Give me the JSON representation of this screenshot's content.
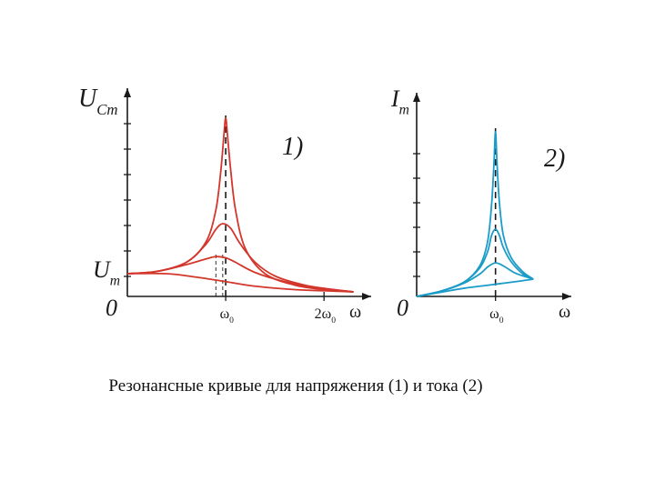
{
  "caption": "Резонансные кривые для напряжения (1) и тока (2)",
  "colors": {
    "voltage": "#d3372b",
    "current": "#1b9cc8",
    "axis": "#1a1a1a"
  },
  "chart_data": [
    {
      "type": "line",
      "panel_label": "1)",
      "ylabel": {
        "main": "U",
        "sub": "Cm"
      },
      "y_marker": {
        "main": "U",
        "sub": "m"
      },
      "origin_label": "0",
      "xlabel": "ω",
      "x_ticks": [
        {
          "value": 1,
          "label": "ω0",
          "main": "ω",
          "sub": "0"
        },
        {
          "value": 2,
          "label": "2ω0",
          "main": "2ω",
          "sub": "0"
        }
      ],
      "xlim": [
        0,
        2.35
      ],
      "ylim": [
        0,
        8.6
      ],
      "resonance_line_x": 1,
      "dashed_peaks_x": [
        0.9,
        0.97
      ],
      "series": [
        {
          "values": [
            [
              0,
              1
            ],
            [
              0.3,
              1.1
            ],
            [
              0.6,
              1.5
            ],
            [
              0.8,
              2.4
            ],
            [
              0.9,
              3.8
            ],
            [
              0.95,
              5.5
            ],
            [
              0.98,
              7.0
            ],
            [
              1.0,
              7.85
            ],
            [
              1.02,
              7.0
            ],
            [
              1.05,
              5.6
            ],
            [
              1.1,
              3.8
            ],
            [
              1.2,
              2.1
            ],
            [
              1.4,
              1.0
            ],
            [
              1.7,
              0.5
            ],
            [
              2.0,
              0.3
            ],
            [
              2.3,
              0.2
            ]
          ]
        },
        {
          "values": [
            [
              0,
              1
            ],
            [
              0.3,
              1.1
            ],
            [
              0.6,
              1.5
            ],
            [
              0.8,
              2.3
            ],
            [
              0.9,
              2.95
            ],
            [
              0.97,
              3.2
            ],
            [
              1.05,
              3.0
            ],
            [
              1.15,
              2.3
            ],
            [
              1.3,
              1.5
            ],
            [
              1.5,
              0.9
            ],
            [
              1.8,
              0.5
            ],
            [
              2.1,
              0.3
            ],
            [
              2.3,
              0.2
            ]
          ]
        },
        {
          "values": [
            [
              0,
              1
            ],
            [
              0.3,
              1.1
            ],
            [
              0.6,
              1.4
            ],
            [
              0.8,
              1.65
            ],
            [
              0.9,
              1.75
            ],
            [
              1.0,
              1.7
            ],
            [
              1.1,
              1.5
            ],
            [
              1.3,
              1.05
            ],
            [
              1.6,
              0.65
            ],
            [
              1.9,
              0.4
            ],
            [
              2.3,
              0.2
            ]
          ]
        },
        {
          "values": [
            [
              0,
              1
            ],
            [
              0.4,
              1
            ],
            [
              0.7,
              0.85
            ],
            [
              1.0,
              0.65
            ],
            [
              1.3,
              0.45
            ],
            [
              1.7,
              0.3
            ],
            [
              2.0,
              0.25
            ],
            [
              2.3,
              0.2
            ]
          ]
        }
      ]
    },
    {
      "type": "line",
      "panel_label": "2)",
      "ylabel": {
        "main": "I",
        "sub": "m"
      },
      "origin_label": "0",
      "xlabel": "ω",
      "x_ticks": [
        {
          "value": 1,
          "label": "ω0",
          "main": "ω",
          "sub": "0"
        }
      ],
      "xlim": [
        0,
        1.8
      ],
      "ylim": [
        0,
        9.4
      ],
      "resonance_line_x": 1,
      "series": [
        {
          "values": [
            [
              0,
              0
            ],
            [
              0.3,
              0.25
            ],
            [
              0.6,
              0.7
            ],
            [
              0.8,
              1.5
            ],
            [
              0.9,
              2.7
            ],
            [
              0.95,
              4.5
            ],
            [
              0.98,
              6.5
            ],
            [
              1.0,
              8.1
            ],
            [
              1.02,
              6.5
            ],
            [
              1.05,
              4.6
            ],
            [
              1.1,
              3.0
            ],
            [
              1.2,
              1.9
            ],
            [
              1.35,
              1.2
            ],
            [
              1.48,
              0.85
            ]
          ]
        },
        {
          "values": [
            [
              0,
              0
            ],
            [
              0.3,
              0.25
            ],
            [
              0.6,
              0.7
            ],
            [
              0.8,
              1.4
            ],
            [
              0.9,
              2.2
            ],
            [
              0.95,
              3.0
            ],
            [
              1.0,
              3.3
            ],
            [
              1.05,
              3.0
            ],
            [
              1.1,
              2.4
            ],
            [
              1.2,
              1.7
            ],
            [
              1.35,
              1.1
            ],
            [
              1.48,
              0.85
            ]
          ]
        },
        {
          "values": [
            [
              0,
              0
            ],
            [
              0.3,
              0.25
            ],
            [
              0.6,
              0.65
            ],
            [
              0.8,
              1.1
            ],
            [
              0.9,
              1.45
            ],
            [
              1.0,
              1.65
            ],
            [
              1.1,
              1.5
            ],
            [
              1.25,
              1.15
            ],
            [
              1.4,
              0.95
            ],
            [
              1.48,
              0.85
            ]
          ]
        },
        {
          "values": [
            [
              0,
              0
            ],
            [
              0.3,
              0.2
            ],
            [
              0.6,
              0.4
            ],
            [
              0.9,
              0.55
            ],
            [
              1.1,
              0.65
            ],
            [
              1.3,
              0.75
            ],
            [
              1.48,
              0.85
            ]
          ]
        }
      ]
    }
  ]
}
